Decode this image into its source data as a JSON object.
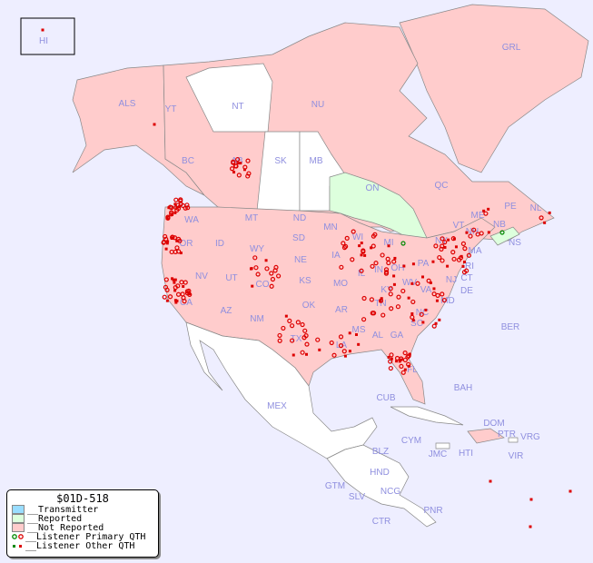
{
  "map": {
    "colors": {
      "ocean": "#eeeeff",
      "not_reported": "#ffcccc",
      "reported": "#ddffdd",
      "transmitter": "#99ddff",
      "no_data": "#ffffff",
      "marker": "#dd0000",
      "marker_reported": "#008800"
    },
    "regions": [
      "HI",
      "ALS",
      "YT",
      "NT",
      "NU",
      "GRL",
      "BC",
      "AB",
      "SK",
      "MB",
      "ON",
      "QC",
      "NL",
      "NS",
      "WA",
      "OR",
      "ID",
      "MT",
      "ND",
      "MN",
      "WI",
      "MI",
      "NY",
      "VT",
      "NH",
      "ME",
      "MA",
      "RI",
      "CT",
      "NJ",
      "PA",
      "OH",
      "IN",
      "IL",
      "IA",
      "SD",
      "WY",
      "NV",
      "CA",
      "UT",
      "CO",
      "NE",
      "KS",
      "MO",
      "KY",
      "WV",
      "VA",
      "DE",
      "MD",
      "OK",
      "AR",
      "TN",
      "NC",
      "SC",
      "GA",
      "AL",
      "MS",
      "LA",
      "TX",
      "NM",
      "AZ",
      "FL",
      "BER",
      "BAH",
      "CUB",
      "MEX",
      "CYM",
      "JMC",
      "HTI",
      "DOM",
      "PTR",
      "VRG",
      "VIR",
      "BLZ",
      "HND",
      "GTM",
      "SLV",
      "NCG",
      "CTR",
      "PNR",
      "PE",
      "NB"
    ]
  },
  "legend": {
    "title": "$01D-518",
    "items": [
      "__Transmitter",
      "__Reported",
      "__Not Reported",
      "__Listener Primary QTH",
      "__Listener Other QTH"
    ]
  }
}
